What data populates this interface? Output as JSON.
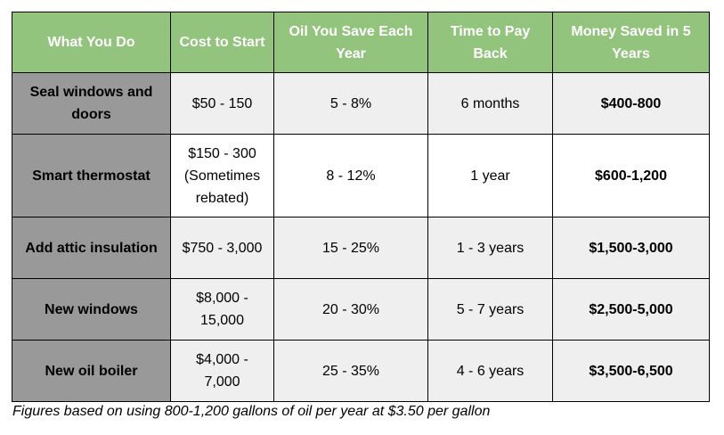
{
  "colors": {
    "header_bg": "#93c47d",
    "header_text": "#ffffff",
    "row_header_bg": "#999999",
    "shaded_row_bg": "#efefef",
    "border": "#000000"
  },
  "table": {
    "headers": [
      "What You Do",
      "Cost to Start",
      "Oil You Save Each Year",
      "Time to Pay Back",
      "Money Saved in 5 Years"
    ],
    "rows": [
      {
        "what": "Seal windows and doors",
        "cost": "$50 - 150",
        "oil": "5 - 8%",
        "payback": "6 months",
        "saved": "$400-800"
      },
      {
        "what": "Smart thermostat",
        "cost": "$150 - 300 (Sometimes rebated)",
        "oil": "8 - 12%",
        "payback": "1 year",
        "saved": "$600-1,200"
      },
      {
        "what": "Add attic insulation",
        "cost": "$750 - 3,000",
        "oil": "15 - 25%",
        "payback": "1 - 3 years",
        "saved": "$1,500-3,000"
      },
      {
        "what": "New windows",
        "cost": "$8,000 - 15,000",
        "oil": "20 - 30%",
        "payback": "5 - 7 years",
        "saved": "$2,500-5,000"
      },
      {
        "what": "New oil boiler",
        "cost": "$4,000 - 7,000",
        "oil": "25 - 35%",
        "payback": "4 - 6 years",
        "saved": "$3,500-6,500"
      }
    ]
  },
  "footnote": "Figures based on using 800-1,200 gallons of oil per year at $3.50 per gallon"
}
